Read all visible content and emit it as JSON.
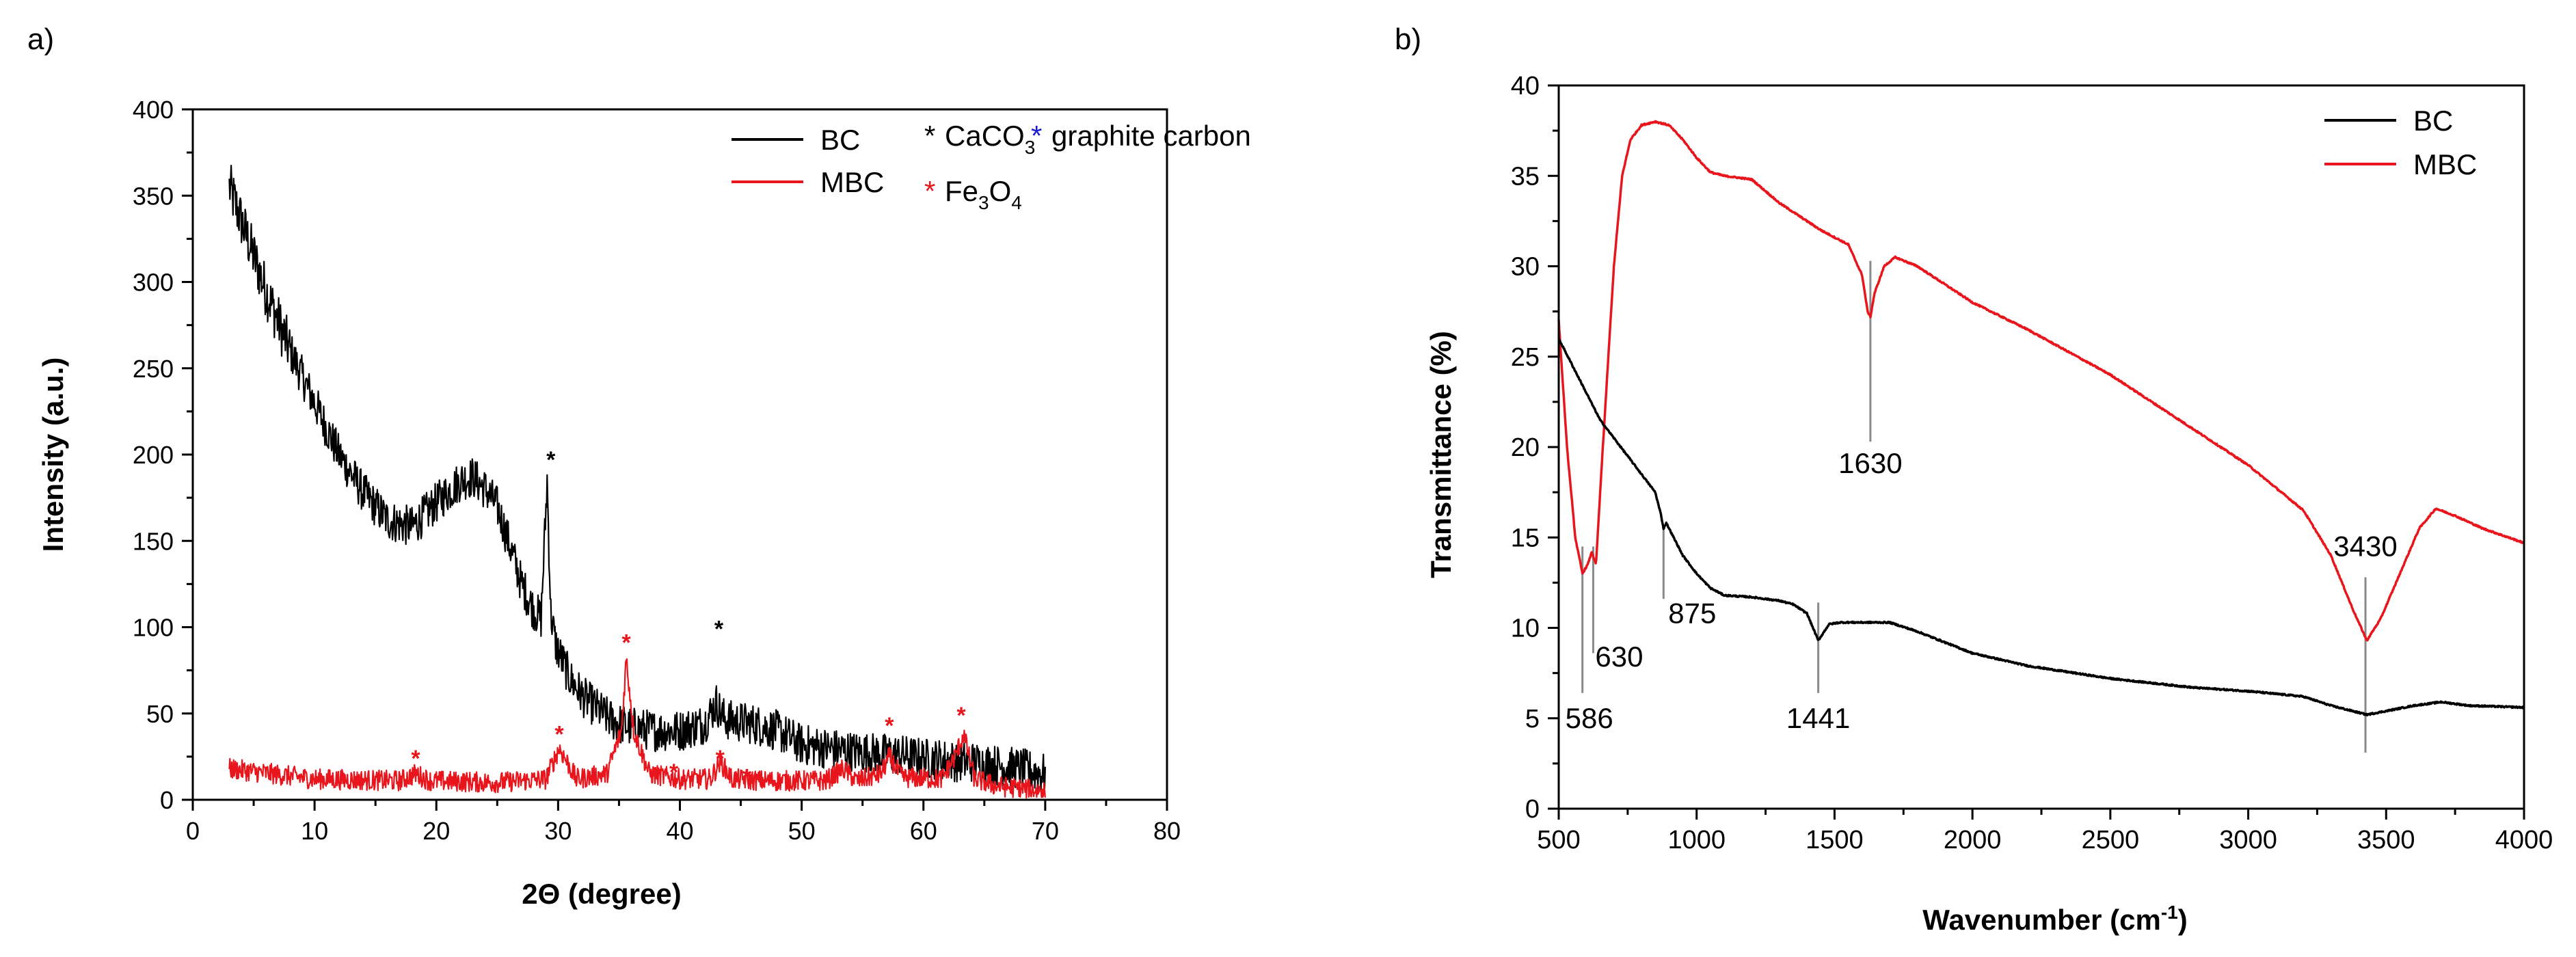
{
  "colors": {
    "bc": "#000000",
    "mbc": "#e8161c",
    "graphite": "#1a1ad8",
    "ref_line": "#8a8a8a"
  },
  "chart_data": [
    {
      "panel_label": "a)",
      "type": "line",
      "title": "",
      "xlabel": "2Θ (degree)",
      "ylabel": "Intensity (a.u.)",
      "xlim": [
        0,
        80
      ],
      "ylim": [
        0,
        400
      ],
      "xticks": [
        "0",
        "10",
        "20",
        "30",
        "40",
        "50",
        "60",
        "70",
        "80"
      ],
      "yticks": [
        "0",
        "50",
        "100",
        "150",
        "200",
        "250",
        "300",
        "350",
        "400"
      ],
      "legend": {
        "placement": "top-right",
        "entries": [
          "BC",
          "MBC"
        ],
        "marker_legend": {
          "star": "*",
          "caco3_prefix": "CaCO",
          "caco3_sub": "3",
          "graphite_label": "graphite carbon",
          "fe3o4_a": "Fe",
          "fe3o4_sub1": "3",
          "fe3o4_b": "O",
          "fe3o4_sub2": "4"
        }
      },
      "series": [
        {
          "name": "BC",
          "x": [
            3,
            4,
            5,
            6,
            8,
            10,
            12,
            14,
            16,
            18,
            20,
            22,
            23,
            24,
            25,
            26,
            27,
            28,
            28.6,
            29.1,
            29.4,
            29.8,
            30.5,
            31,
            32,
            33,
            34,
            35,
            36,
            38,
            40,
            42,
            43,
            43.5,
            44,
            45,
            46,
            47,
            48,
            49,
            50,
            52,
            54,
            56,
            58,
            60,
            62,
            63,
            64,
            66,
            68,
            70
          ],
          "y": [
            355,
            335,
            315,
            295,
            260,
            230,
            200,
            178,
            162,
            158,
            172,
            185,
            187,
            180,
            170,
            148,
            125,
            110,
            105,
            185,
            108,
            90,
            78,
            70,
            60,
            54,
            48,
            44,
            42,
            40,
            40,
            44,
            56,
            48,
            46,
            45,
            44,
            42,
            40,
            36,
            32,
            30,
            28,
            27,
            26,
            24,
            23,
            22,
            22,
            20,
            18,
            15
          ],
          "noise_amplitude": 12
        },
        {
          "name": "MBC",
          "x": [
            3,
            10,
            17,
            18.3,
            19.5,
            25,
            29,
            30.1,
            31.5,
            34,
            35.2,
            35.6,
            36.2,
            37.5,
            40,
            42.5,
            43.3,
            44.3,
            47,
            52,
            53.4,
            54.5,
            56.5,
            57.2,
            58.2,
            61.5,
            62.6,
            63.3,
            64.2,
            66,
            70
          ],
          "y": [
            18,
            12,
            11,
            15,
            11,
            10,
            12,
            30,
            12,
            15,
            40,
            82,
            40,
            15,
            12,
            12,
            22,
            12,
            11,
            11,
            18,
            11,
            15,
            25,
            13,
            12,
            25,
            38,
            12,
            8,
            5
          ],
          "noise_amplitude": 6
        }
      ],
      "annotations": [
        {
          "label": "*",
          "series": "BC",
          "x": 29.4,
          "y": 198
        },
        {
          "label": "*",
          "series": "BC",
          "x": 43.2,
          "y": 100
        },
        {
          "label": "*",
          "series": "MBC",
          "x": 18.3,
          "y": 25
        },
        {
          "label": "*",
          "series": "MBC",
          "x": 30.1,
          "y": 39
        },
        {
          "label": "*",
          "series": "MBC",
          "x": 35.6,
          "y": 92
        },
        {
          "label": "*",
          "series": "MBC",
          "x": 39.5,
          "y": 17
        },
        {
          "label": "*",
          "series": "MBC",
          "x": 43.3,
          "y": 25
        },
        {
          "label": "*",
          "series": "MBC",
          "x": 45.5,
          "y": 14
        },
        {
          "label": "*",
          "series": "MBC",
          "x": 57.2,
          "y": 44
        },
        {
          "label": "*",
          "series": "MBC",
          "x": 63.1,
          "y": 50
        }
      ]
    },
    {
      "panel_label": "b)",
      "type": "line",
      "title": "",
      "xlabel_main": "Wavenumber (cm",
      "xlabel_sup": "-1",
      "xlabel_close": ")",
      "ylabel": "Transmittance (%)",
      "xlim": [
        500,
        4000
      ],
      "ylim": [
        0,
        40
      ],
      "xticks": [
        "500",
        "1000",
        "1500",
        "2000",
        "2500",
        "3000",
        "3500",
        "4000"
      ],
      "yticks": [
        "0",
        "5",
        "10",
        "15",
        "20",
        "25",
        "30",
        "35",
        "40"
      ],
      "legend": {
        "placement": "top-right",
        "entries": [
          "BC",
          "MBC"
        ]
      },
      "series": [
        {
          "name": "MBC",
          "x": [
            500,
            530,
            560,
            586,
            605,
            620,
            635,
            660,
            700,
            730,
            760,
            800,
            850,
            900,
            950,
            1000,
            1050,
            1100,
            1200,
            1300,
            1350,
            1450,
            1550,
            1600,
            1620,
            1630,
            1645,
            1680,
            1720,
            1800,
            2000,
            2200,
            2500,
            2800,
            3000,
            3200,
            3300,
            3380,
            3430,
            3480,
            3550,
            3620,
            3680,
            3750,
            3850,
            4000
          ],
          "y": [
            27,
            20,
            15,
            13,
            13.5,
            14.2,
            13.5,
            20,
            30,
            35,
            37,
            37.8,
            38,
            37.8,
            37,
            36,
            35.2,
            35,
            34.8,
            33.5,
            33,
            32,
            31.2,
            29.5,
            27.5,
            27.2,
            28.5,
            30,
            30.5,
            30,
            28,
            26.5,
            24,
            21,
            19,
            16.5,
            14,
            11,
            9.3,
            10.5,
            13,
            15.5,
            16.6,
            16.2,
            15.5,
            14.7
          ]
        },
        {
          "name": "BC",
          "x": [
            500,
            550,
            600,
            650,
            700,
            750,
            800,
            850,
            870,
            880,
            890,
            950,
            1000,
            1050,
            1100,
            1200,
            1300,
            1350,
            1400,
            1441,
            1480,
            1520,
            1600,
            1700,
            1800,
            2000,
            2200,
            2500,
            2800,
            3000,
            3200,
            3300,
            3430,
            3500,
            3600,
            3700,
            3800,
            4000
          ],
          "y": [
            26,
            24.5,
            23,
            21.5,
            20.5,
            19.5,
            18.5,
            17.5,
            16.3,
            15.5,
            15.8,
            14,
            13,
            12.2,
            11.8,
            11.7,
            11.5,
            11.3,
            10.8,
            9.3,
            10.2,
            10.3,
            10.3,
            10.3,
            9.8,
            8.6,
            7.9,
            7.2,
            6.7,
            6.5,
            6.2,
            5.7,
            5.2,
            5.4,
            5.7,
            5.9,
            5.7,
            5.6
          ]
        }
      ],
      "annotations": [
        {
          "label": "586",
          "x": 586,
          "y_line_top": 14.5,
          "y_line_bottom": 6.4,
          "y_label": 5.0
        },
        {
          "label": "630",
          "x": 625,
          "y_line_top": 14.5,
          "y_line_bottom": 8.6,
          "y_label": 8.4
        },
        {
          "label": "875",
          "x": 880,
          "y_line_top": 15.5,
          "y_line_bottom": 11.6,
          "y_label": 10.8
        },
        {
          "label": "1441",
          "x": 1441,
          "y_line_top": 11.4,
          "y_line_bottom": 6.4,
          "y_label": 5.0
        },
        {
          "label": "1630",
          "x": 1630,
          "y_line_top": 30.3,
          "y_line_bottom": 20.3,
          "y_label": 19.1
        },
        {
          "label": "3430",
          "x": 3425,
          "y_line_top": 12.8,
          "y_line_bottom": 3.1,
          "y_label": 14.5
        }
      ]
    }
  ]
}
